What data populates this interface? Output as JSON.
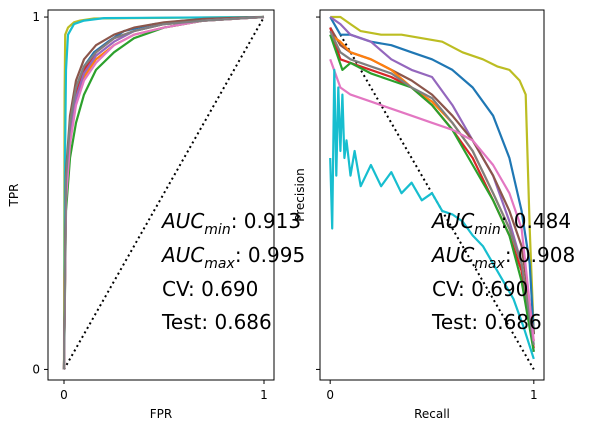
{
  "chart_data": [
    {
      "type": "line",
      "title": "",
      "xlabel": "FPR",
      "ylabel": "TPR",
      "xlim": [
        -0.08,
        1.05
      ],
      "ylim": [
        -0.03,
        1.02
      ],
      "x_ticks": [
        {
          "value": 0,
          "label": "0"
        },
        {
          "value": 1,
          "label": "1"
        }
      ],
      "y_ticks": [
        {
          "value": 0,
          "label": "0"
        },
        {
          "value": 1,
          "label": "1"
        }
      ],
      "grid": false,
      "legend": "none",
      "annotations": [
        {
          "math": "AUC",
          "sub": "min",
          "text": ": 0.913"
        },
        {
          "math": "AUC",
          "sub": "max",
          "text": ": 0.995"
        },
        {
          "text": "CV: 0.690"
        },
        {
          "text": "Test: 0.686"
        }
      ],
      "reference_line": {
        "style": "dotted",
        "color": "#000000",
        "points": [
          [
            0,
            0
          ],
          [
            1,
            1
          ]
        ]
      },
      "series": [
        {
          "color": "#bcbd22",
          "x": [
            0,
            0.003,
            0.006,
            0.02,
            0.05,
            0.08,
            0.15,
            1
          ],
          "y": [
            0,
            0.78,
            0.95,
            0.97,
            0.985,
            0.99,
            0.996,
            1
          ]
        },
        {
          "color": "#17becf",
          "x": [
            0,
            0.002,
            0.005,
            0.01,
            0.02,
            0.05,
            0.1,
            0.2,
            1
          ],
          "y": [
            0,
            0.05,
            0.6,
            0.85,
            0.95,
            0.98,
            0.99,
            0.997,
            1
          ]
        },
        {
          "color": "#1f77b4",
          "x": [
            0,
            0.01,
            0.03,
            0.06,
            0.1,
            0.15,
            0.22,
            0.3,
            0.45,
            0.6,
            1
          ],
          "y": [
            0,
            0.55,
            0.7,
            0.8,
            0.86,
            0.9,
            0.93,
            0.96,
            0.98,
            0.99,
            1
          ]
        },
        {
          "color": "#ff7f0e",
          "x": [
            0,
            0.01,
            0.03,
            0.06,
            0.1,
            0.16,
            0.25,
            0.35,
            0.5,
            0.7,
            1
          ],
          "y": [
            0,
            0.5,
            0.65,
            0.76,
            0.83,
            0.88,
            0.92,
            0.95,
            0.97,
            0.99,
            1
          ]
        },
        {
          "color": "#2ca02c",
          "x": [
            0,
            0.01,
            0.03,
            0.06,
            0.1,
            0.16,
            0.25,
            0.35,
            0.5,
            0.7,
            1
          ],
          "y": [
            0,
            0.45,
            0.6,
            0.7,
            0.78,
            0.85,
            0.9,
            0.94,
            0.97,
            0.99,
            1
          ]
        },
        {
          "color": "#d62728",
          "x": [
            0,
            0.01,
            0.03,
            0.06,
            0.1,
            0.16,
            0.25,
            0.35,
            0.5,
            0.7,
            1
          ],
          "y": [
            0,
            0.52,
            0.68,
            0.78,
            0.85,
            0.9,
            0.94,
            0.96,
            0.98,
            0.99,
            1
          ]
        },
        {
          "color": "#9467bd",
          "x": [
            0,
            0.01,
            0.03,
            0.06,
            0.1,
            0.16,
            0.25,
            0.35,
            0.5,
            0.7,
            1
          ],
          "y": [
            0,
            0.5,
            0.66,
            0.77,
            0.84,
            0.89,
            0.93,
            0.96,
            0.98,
            0.99,
            1
          ]
        },
        {
          "color": "#8c564b",
          "x": [
            0,
            0.01,
            0.03,
            0.06,
            0.1,
            0.16,
            0.25,
            0.35,
            0.5,
            0.7,
            1
          ],
          "y": [
            0,
            0.56,
            0.72,
            0.82,
            0.88,
            0.92,
            0.95,
            0.97,
            0.985,
            0.995,
            1
          ]
        },
        {
          "color": "#e377c2",
          "x": [
            0,
            0.01,
            0.03,
            0.06,
            0.1,
            0.16,
            0.25,
            0.35,
            0.5,
            0.7,
            1
          ],
          "y": [
            0,
            0.48,
            0.64,
            0.75,
            0.82,
            0.87,
            0.92,
            0.95,
            0.97,
            0.99,
            1
          ]
        },
        {
          "color": "#7f7f7f",
          "x": [
            0,
            0.01,
            0.03,
            0.06,
            0.1,
            0.16,
            0.25,
            0.35,
            0.5,
            0.7,
            1
          ],
          "y": [
            0,
            0.54,
            0.7,
            0.8,
            0.86,
            0.9,
            0.94,
            0.96,
            0.98,
            0.99,
            1
          ]
        }
      ]
    },
    {
      "type": "line",
      "title": "",
      "xlabel": "Recall",
      "ylabel": "Precision",
      "xlim": [
        -0.05,
        1.05
      ],
      "ylim": [
        -0.03,
        1.02
      ],
      "x_ticks": [
        {
          "value": 0,
          "label": "0"
        },
        {
          "value": 1,
          "label": "1"
        }
      ],
      "y_ticks": [
        {
          "value": 0,
          "label": ""
        },
        {
          "value": 1,
          "label": ""
        }
      ],
      "grid": false,
      "legend": "none",
      "annotations": [
        {
          "math": "AUC",
          "sub": "min",
          "text": ": 0.484"
        },
        {
          "math": "AUC",
          "sub": "max",
          "text": ": 0.908"
        },
        {
          "text": "CV: 0.690"
        },
        {
          "text": "Test: 0.686"
        }
      ],
      "reference_line": {
        "style": "dotted",
        "color": "#000000",
        "points": [
          [
            0.05,
            0.95
          ],
          [
            1,
            0
          ]
        ]
      },
      "series": [
        {
          "color": "#bcbd22",
          "x": [
            0,
            0.05,
            0.1,
            0.15,
            0.25,
            0.35,
            0.45,
            0.55,
            0.65,
            0.75,
            0.82,
            0.88,
            0.93,
            0.96,
            0.98,
            1
          ],
          "y": [
            1,
            1,
            0.98,
            0.96,
            0.95,
            0.95,
            0.94,
            0.93,
            0.9,
            0.88,
            0.86,
            0.85,
            0.82,
            0.78,
            0.4,
            0.1
          ]
        },
        {
          "color": "#1f77b4",
          "x": [
            0,
            0.05,
            0.1,
            0.2,
            0.3,
            0.4,
            0.5,
            0.6,
            0.7,
            0.8,
            0.88,
            0.94,
            0.98,
            1
          ],
          "y": [
            1,
            0.95,
            0.95,
            0.93,
            0.92,
            0.9,
            0.88,
            0.85,
            0.8,
            0.72,
            0.6,
            0.45,
            0.3,
            0.1
          ]
        },
        {
          "color": "#9467bd",
          "x": [
            0,
            0.05,
            0.1,
            0.2,
            0.3,
            0.4,
            0.5,
            0.6,
            0.7,
            0.8,
            0.88,
            0.94,
            1
          ],
          "y": [
            1,
            0.98,
            0.95,
            0.93,
            0.88,
            0.85,
            0.83,
            0.75,
            0.65,
            0.55,
            0.42,
            0.3,
            0.05
          ]
        },
        {
          "color": "#8c564b",
          "x": [
            0,
            0.05,
            0.1,
            0.2,
            0.3,
            0.4,
            0.5,
            0.6,
            0.7,
            0.8,
            0.88,
            0.94,
            1
          ],
          "y": [
            0.97,
            0.92,
            0.9,
            0.88,
            0.85,
            0.82,
            0.78,
            0.72,
            0.65,
            0.55,
            0.45,
            0.35,
            0.1
          ]
        },
        {
          "color": "#ff7f0e",
          "x": [
            0,
            0.05,
            0.1,
            0.2,
            0.3,
            0.4,
            0.5,
            0.6,
            0.7,
            0.8,
            0.88,
            0.94,
            1
          ],
          "y": [
            0.95,
            0.93,
            0.9,
            0.88,
            0.85,
            0.8,
            0.76,
            0.7,
            0.62,
            0.5,
            0.4,
            0.3,
            0.08
          ]
        },
        {
          "color": "#d62728",
          "x": [
            0,
            0.05,
            0.1,
            0.2,
            0.3,
            0.4,
            0.5,
            0.6,
            0.7,
            0.8,
            0.88,
            0.94,
            1
          ],
          "y": [
            0.97,
            0.88,
            0.87,
            0.85,
            0.83,
            0.8,
            0.75,
            0.68,
            0.6,
            0.48,
            0.38,
            0.28,
            0.06
          ]
        },
        {
          "color": "#2ca02c",
          "x": [
            0,
            0.03,
            0.06,
            0.1,
            0.2,
            0.3,
            0.4,
            0.5,
            0.6,
            0.7,
            0.8,
            0.88,
            0.94,
            1
          ],
          "y": [
            0.95,
            0.9,
            0.85,
            0.87,
            0.84,
            0.82,
            0.8,
            0.75,
            0.68,
            0.58,
            0.48,
            0.38,
            0.25,
            0.05
          ]
        },
        {
          "color": "#7f7f7f",
          "x": [
            0,
            0.05,
            0.1,
            0.2,
            0.3,
            0.4,
            0.5,
            0.6,
            0.7,
            0.8,
            0.88,
            0.94,
            1
          ],
          "y": [
            0.96,
            0.9,
            0.88,
            0.86,
            0.84,
            0.8,
            0.77,
            0.7,
            0.62,
            0.5,
            0.4,
            0.3,
            0.07
          ]
        },
        {
          "color": "#e377c2",
          "x": [
            0,
            0.05,
            0.1,
            0.2,
            0.3,
            0.4,
            0.5,
            0.6,
            0.7,
            0.8,
            0.88,
            0.94,
            1
          ],
          "y": [
            0.88,
            0.8,
            0.78,
            0.76,
            0.74,
            0.72,
            0.7,
            0.68,
            0.65,
            0.58,
            0.5,
            0.4,
            0.08
          ]
        },
        {
          "color": "#17becf",
          "x": [
            0,
            0.01,
            0.02,
            0.03,
            0.04,
            0.05,
            0.06,
            0.07,
            0.08,
            0.1,
            0.12,
            0.15,
            0.2,
            0.25,
            0.3,
            0.35,
            0.4,
            0.45,
            0.5,
            0.55,
            0.6,
            0.65,
            0.7,
            0.75,
            0.8,
            0.85,
            0.9,
            0.95,
            1
          ],
          "y": [
            0.6,
            0.4,
            0.85,
            0.55,
            0.8,
            0.62,
            0.78,
            0.6,
            0.65,
            0.55,
            0.62,
            0.52,
            0.58,
            0.52,
            0.56,
            0.5,
            0.53,
            0.48,
            0.5,
            0.45,
            0.44,
            0.42,
            0.38,
            0.35,
            0.3,
            0.25,
            0.2,
            0.12,
            0.03
          ]
        }
      ]
    }
  ]
}
